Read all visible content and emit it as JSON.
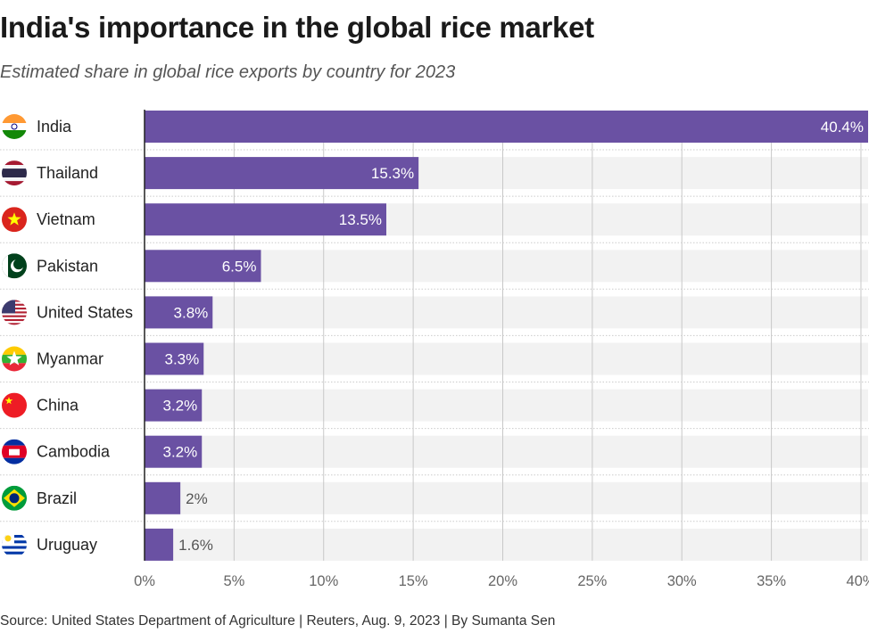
{
  "title": "India's importance in the global rice market",
  "subtitle": "Estimated share in global rice exports by country for 2023",
  "source": "Source: United States Department of Agriculture | Reuters, Aug. 9, 2023 | By Sumanta Sen",
  "colors": {
    "bar": "#6a51a3",
    "band": "#f2f2f2",
    "grid": "#c8c8c8"
  },
  "chart_data": {
    "type": "bar",
    "orientation": "horizontal",
    "title": "India's importance in the global rice market",
    "categories": [
      "India",
      "Thailand",
      "Vietnam",
      "Pakistan",
      "United States",
      "Myanmar",
      "China",
      "Cambodia",
      "Brazil",
      "Uruguay"
    ],
    "values": [
      40.4,
      15.3,
      13.5,
      6.5,
      3.8,
      3.3,
      3.2,
      3.2,
      2,
      1.6
    ],
    "labels": [
      "40.4%",
      "15.3%",
      "13.5%",
      "6.5%",
      "3.8%",
      "3.3%",
      "3.2%",
      "3.2%",
      "2%",
      "1.6%"
    ],
    "flag_icons": [
      "india-flag",
      "thailand-flag",
      "vietnam-flag",
      "pakistan-flag",
      "us-flag",
      "myanmar-flag",
      "china-flag",
      "cambodia-flag",
      "brazil-flag",
      "uruguay-flag"
    ],
    "xticks": [
      "0%",
      "5%",
      "10%",
      "15%",
      "20%",
      "25%",
      "30%",
      "35%",
      "40%"
    ],
    "xtick_values": [
      0,
      5,
      10,
      15,
      20,
      25,
      30,
      35,
      40
    ],
    "xlim": [
      0,
      40.4
    ],
    "xlabel": "",
    "ylabel": "",
    "grid": true
  }
}
